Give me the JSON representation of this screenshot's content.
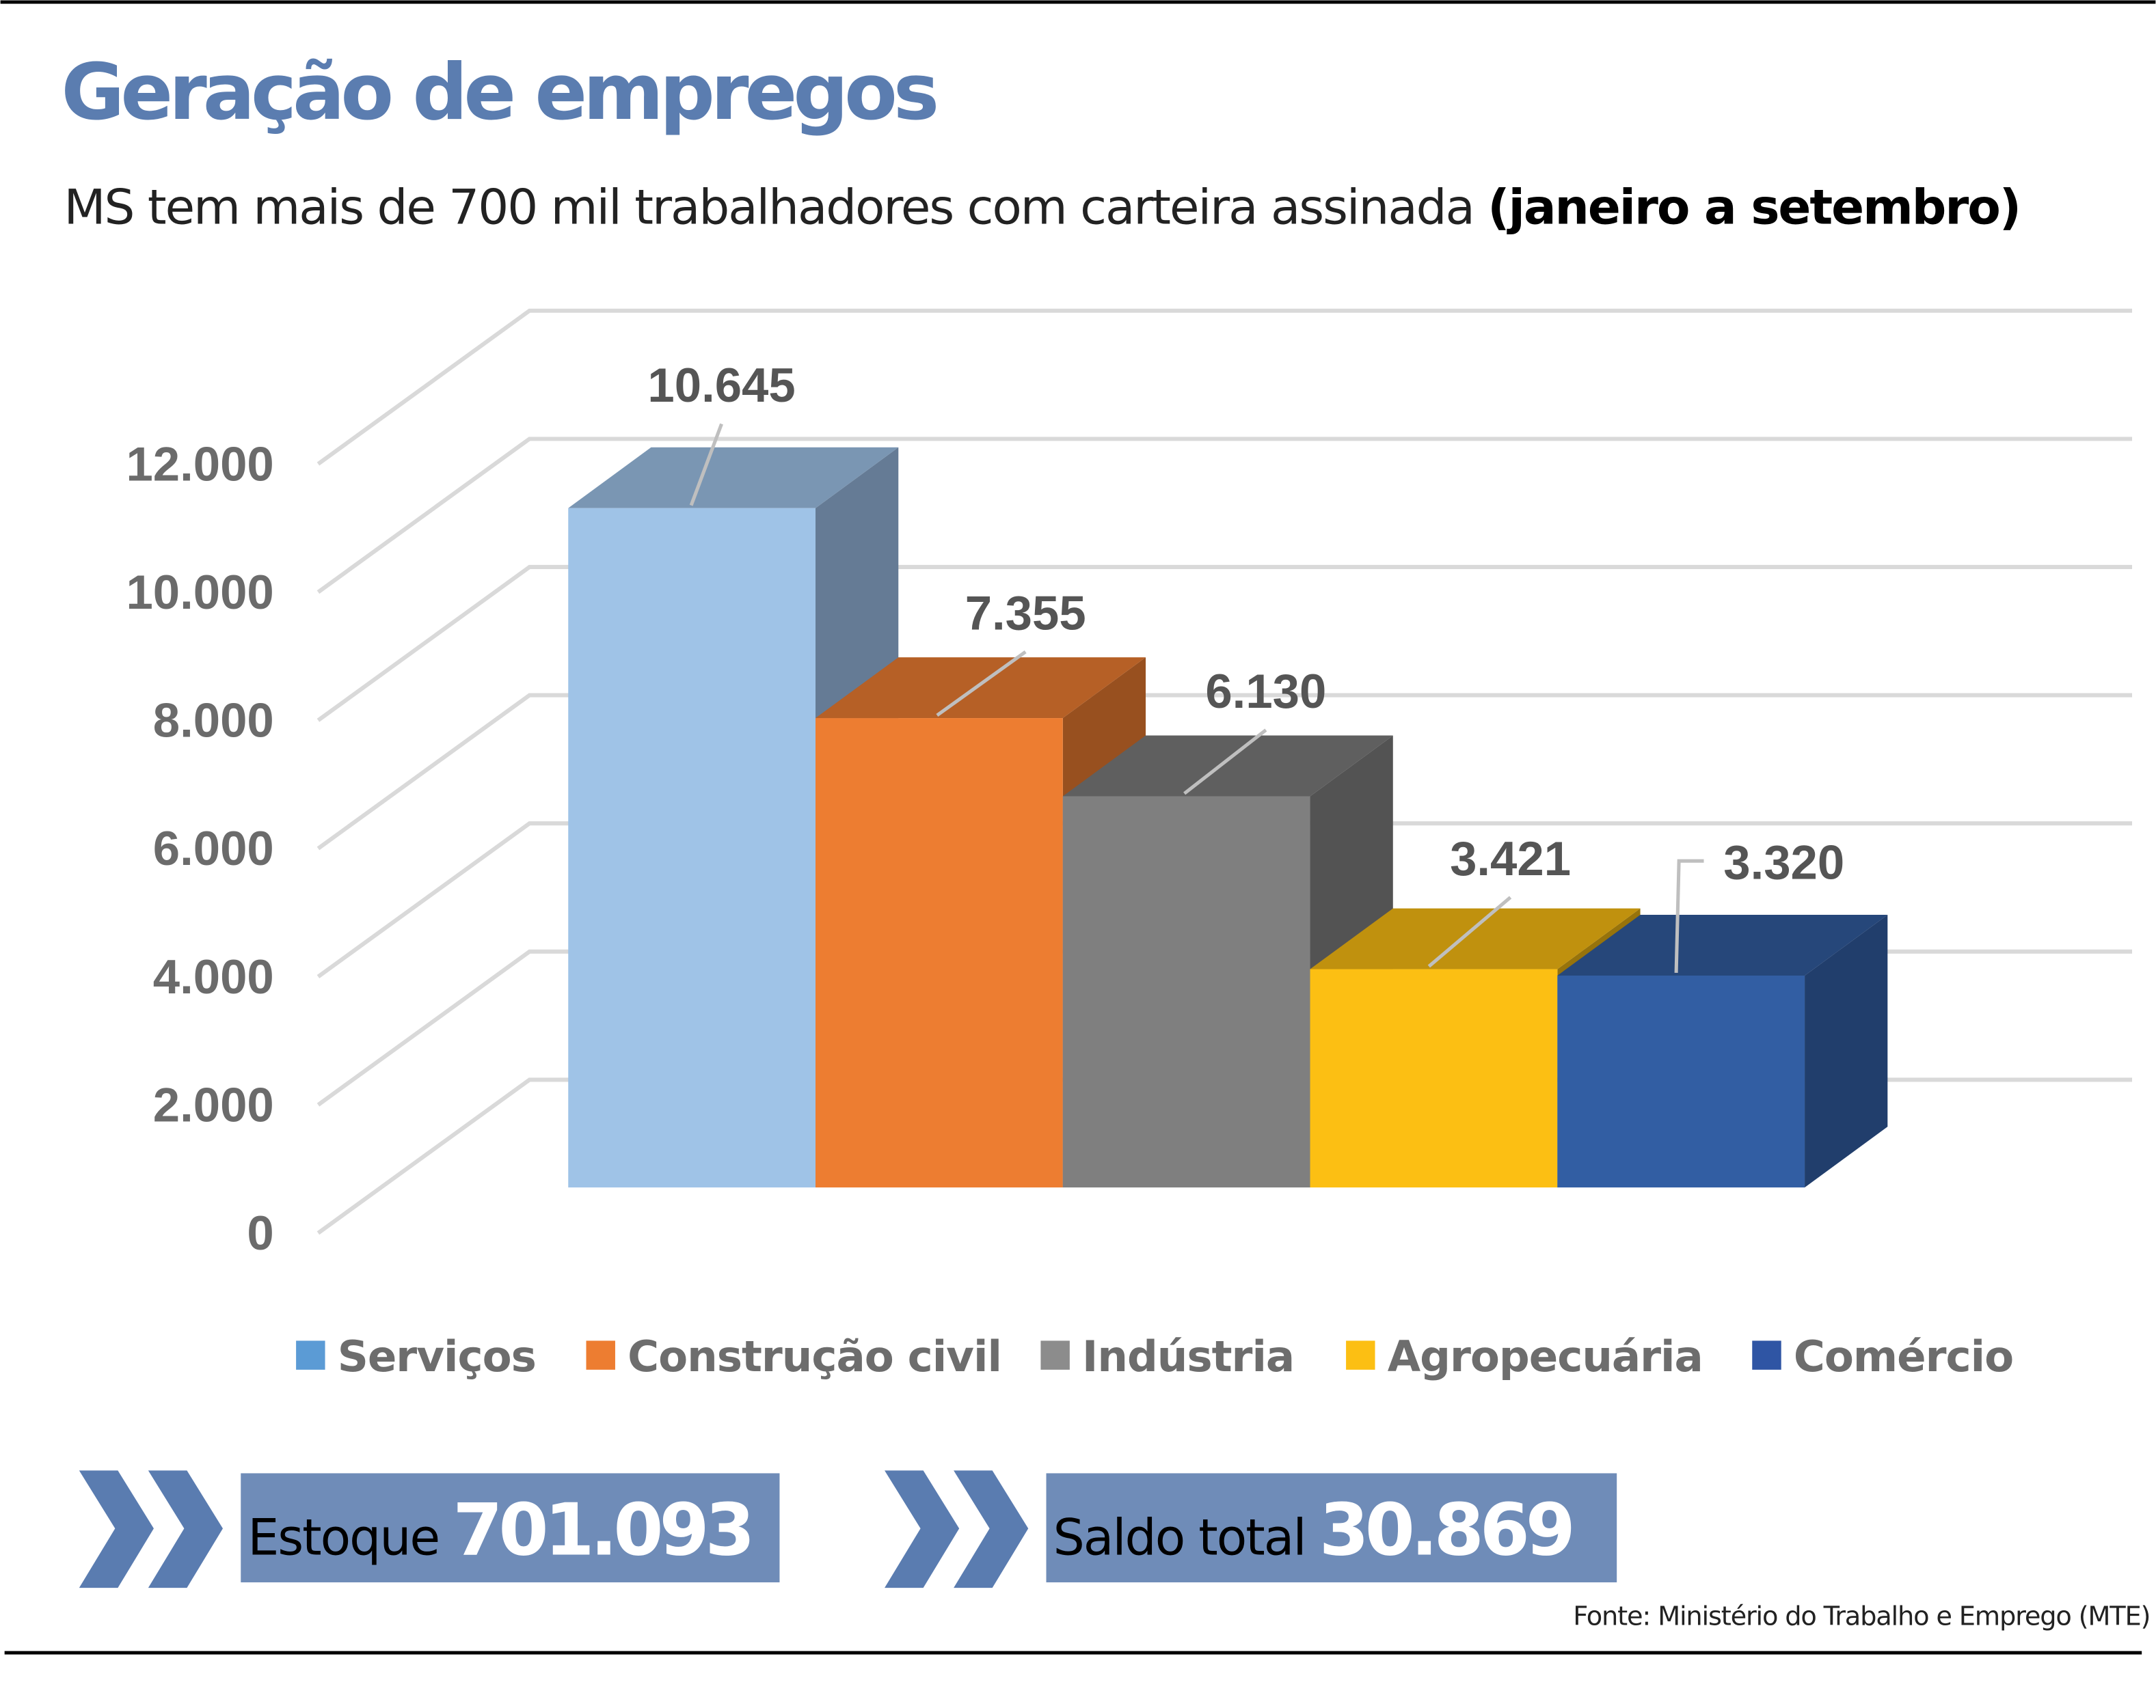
{
  "title": "Geração de empregos",
  "subtitle": {
    "text": "MS tem mais de 700 mil trabalhadores com carteira assinada ",
    "bold": "(janeiro a setembro)"
  },
  "chart_data": {
    "type": "bar",
    "style": "3d",
    "categories": [
      "Serviços",
      "Construção civil",
      "Indústria",
      "Agropecuária",
      "Comércio"
    ],
    "values": [
      10645,
      7355,
      6130,
      3421,
      3320
    ],
    "value_labels": [
      "10.645",
      "7.355",
      "6.130",
      "3.421",
      "3.320"
    ],
    "colors": [
      "#9fc3e7",
      "#ed7d31",
      "#7f7f7f",
      "#fcbf13",
      "#325ea3"
    ],
    "legend_colors": [
      "#5b9bd5",
      "#ed7d31",
      "#8c8c8c",
      "#fcbf13",
      "#2f55a4"
    ],
    "yticks": [
      "0",
      "2.000",
      "4.000",
      "6.000",
      "8.000",
      "10.000",
      "12.000"
    ],
    "ylim": [
      0,
      12000
    ],
    "grid": true,
    "legend": "bottom"
  },
  "summary": [
    {
      "label": "Estoque",
      "value": "701.093"
    },
    {
      "label": "Saldo total",
      "value": "30.869"
    }
  ],
  "source": "Fonte: Ministério do Trabalho e Emprego (MTE)",
  "colors": {
    "title": "#5b7db0",
    "box": "#6f8cb8",
    "chevron": "#5a7cb0"
  }
}
